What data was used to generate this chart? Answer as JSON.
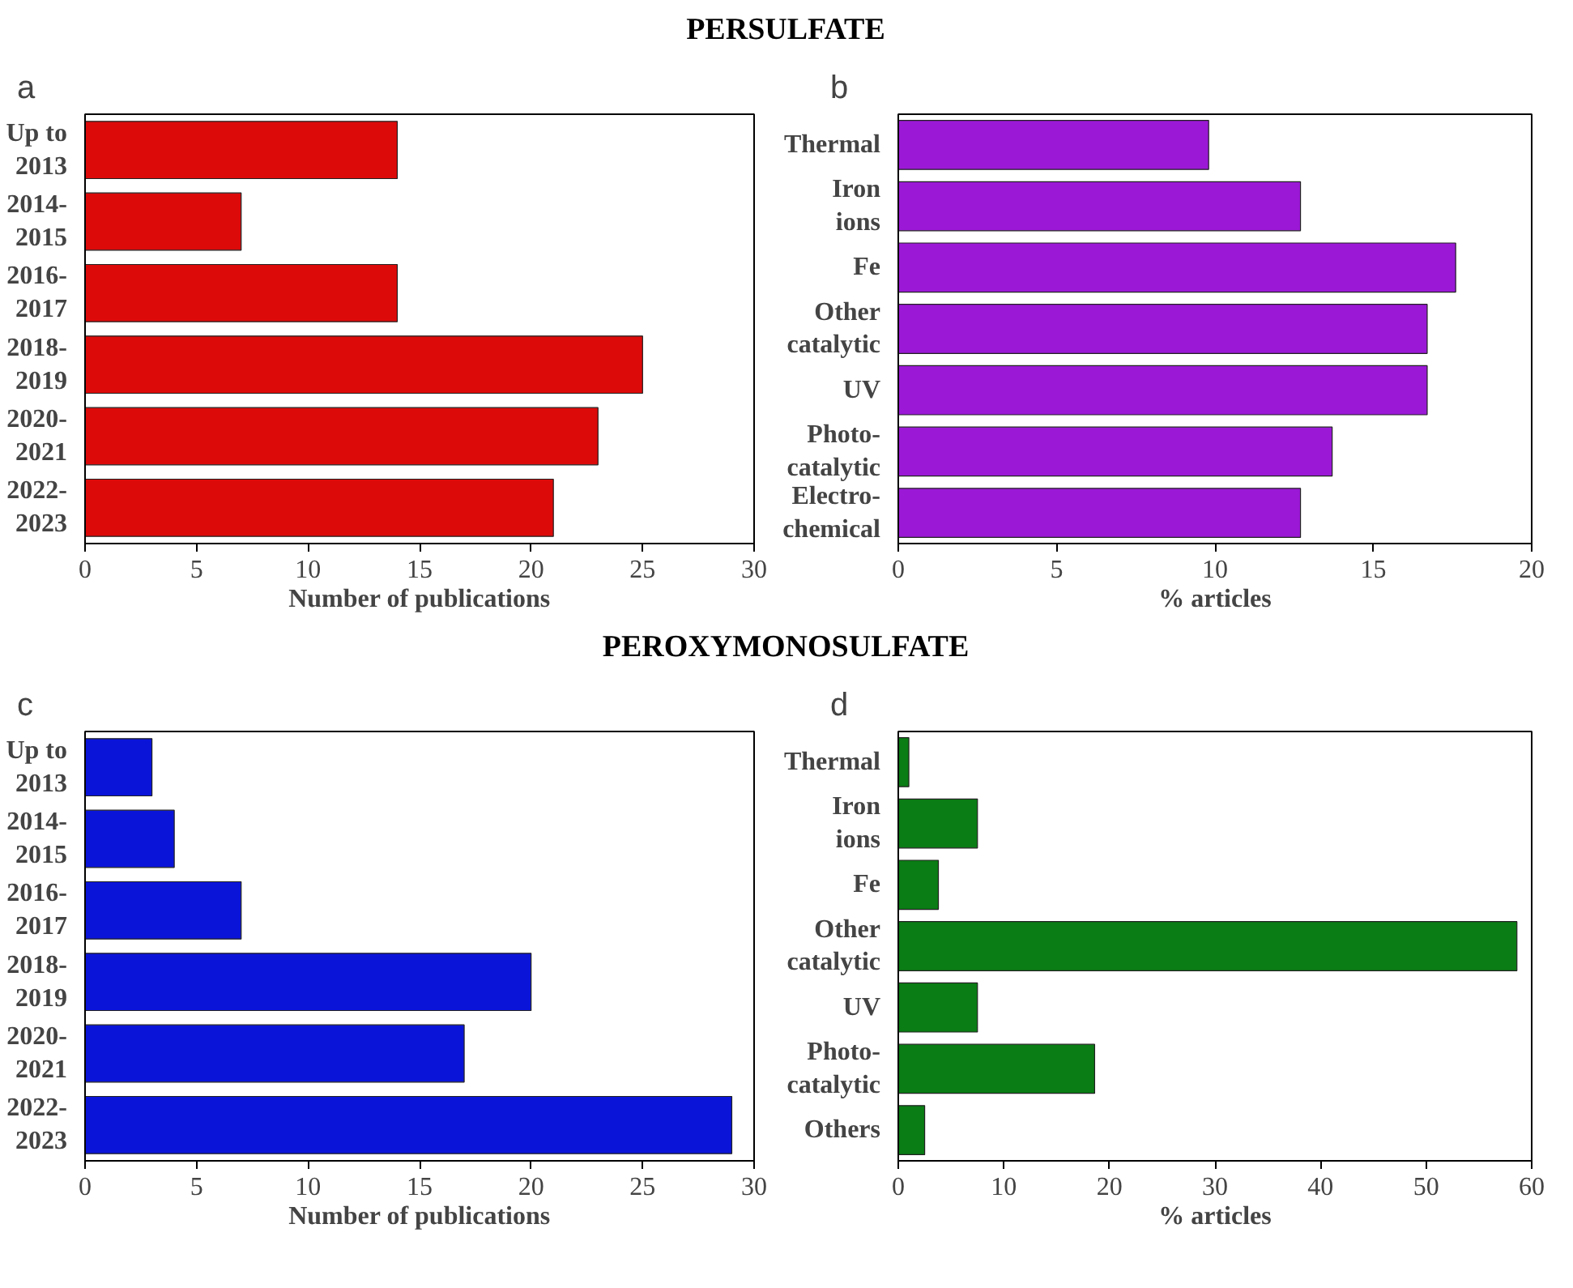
{
  "chart_data": [
    {
      "type": "bar",
      "orientation": "horizontal",
      "title": "a",
      "annotations": [
        "PERSULFATE"
      ],
      "xlabel": "Number of publications",
      "categories": [
        "Up to\n2013",
        "2014-\n2015",
        "2016-\n2017",
        "2018-\n2019",
        "2020-\n2021",
        "2022-\n2023"
      ],
      "values": [
        14,
        7,
        14,
        25,
        23,
        21
      ],
      "color": "#dd0a0a",
      "xlim": [
        0,
        30
      ],
      "xticks": [
        0,
        5,
        10,
        15,
        20,
        25,
        30
      ],
      "grid": false
    },
    {
      "type": "bar",
      "orientation": "horizontal",
      "title": "b",
      "xlabel": "% articles",
      "categories": [
        "Thermal",
        "Iron\nions",
        "Fe",
        "Other\ncatalytic",
        "UV",
        "Photo-\ncatalytic",
        "Electro-\nchemical"
      ],
      "values": [
        9.8,
        12.7,
        17.6,
        16.7,
        16.7,
        13.7,
        12.7
      ],
      "color": "#9b19d6",
      "xlim": [
        0,
        20
      ],
      "xticks": [
        0,
        5,
        10,
        15,
        20
      ],
      "grid": false
    },
    {
      "type": "bar",
      "orientation": "horizontal",
      "title": "c",
      "annotations": [
        "PEROXYMONOSULFATE"
      ],
      "xlabel": "Number of publications",
      "categories": [
        "Up to\n2013",
        "2014-\n2015",
        "2016-\n2017",
        "2018-\n2019",
        "2020-\n2021",
        "2022-\n2023"
      ],
      "values": [
        3,
        4,
        7,
        20,
        17,
        29
      ],
      "color": "#0a14d9",
      "xlim": [
        0,
        30
      ],
      "xticks": [
        0,
        5,
        10,
        15,
        20,
        25,
        30
      ],
      "grid": false
    },
    {
      "type": "bar",
      "orientation": "horizontal",
      "title": "d",
      "xlabel": "% articles",
      "categories": [
        "Thermal",
        "Iron\nions",
        "Fe",
        "Other\ncatalytic",
        "UV",
        "Photo-\ncatalytic",
        "Others"
      ],
      "values": [
        1.0,
        7.5,
        3.8,
        58.6,
        7.5,
        18.6,
        2.5
      ],
      "color": "#0a7d14",
      "xlim": [
        0,
        60
      ],
      "xticks": [
        0,
        10,
        20,
        30,
        40,
        50,
        60
      ],
      "grid": false
    }
  ]
}
